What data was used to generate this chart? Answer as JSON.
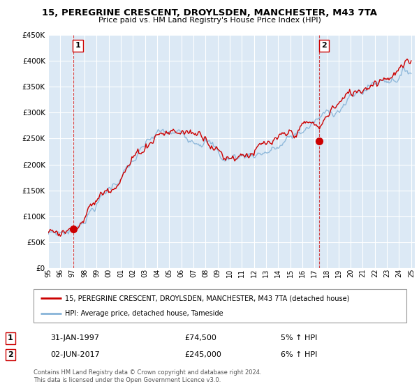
{
  "title": "15, PEREGRINE CRESCENT, DROYLSDEN, MANCHESTER, M43 7TA",
  "subtitle": "Price paid vs. HM Land Registry's House Price Index (HPI)",
  "ylim": [
    0,
    450000
  ],
  "yticks": [
    0,
    50000,
    100000,
    150000,
    200000,
    250000,
    300000,
    350000,
    400000,
    450000
  ],
  "ytick_labels": [
    "£0",
    "£50K",
    "£100K",
    "£150K",
    "£200K",
    "£250K",
    "£300K",
    "£350K",
    "£400K",
    "£450K"
  ],
  "plot_bg_color": "#dce9f5",
  "grid_color": "#ffffff",
  "sale_color": "#cc0000",
  "hpi_color": "#88b4d8",
  "transaction1_x": 1997.08,
  "transaction1_y": 74500,
  "transaction1_label": "1",
  "transaction2_x": 2017.42,
  "transaction2_y": 245000,
  "transaction2_label": "2",
  "legend_line1": "15, PEREGRINE CRESCENT, DROYLSDEN, MANCHESTER, M43 7TA (detached house)",
  "legend_line2": "HPI: Average price, detached house, Tameside",
  "annotation1_date": "31-JAN-1997",
  "annotation1_price": "£74,500",
  "annotation1_hpi": "5% ↑ HPI",
  "annotation2_date": "02-JUN-2017",
  "annotation2_price": "£245,000",
  "annotation2_hpi": "6% ↑ HPI",
  "footer": "Contains HM Land Registry data © Crown copyright and database right 2024.\nThis data is licensed under the Open Government Licence v3.0.",
  "xtick_years": [
    1995,
    1996,
    1997,
    1998,
    1999,
    2000,
    2001,
    2002,
    2003,
    2004,
    2005,
    2006,
    2007,
    2008,
    2009,
    2010,
    2011,
    2012,
    2013,
    2014,
    2015,
    2016,
    2017,
    2018,
    2019,
    2020,
    2021,
    2022,
    2023,
    2024,
    2025
  ]
}
